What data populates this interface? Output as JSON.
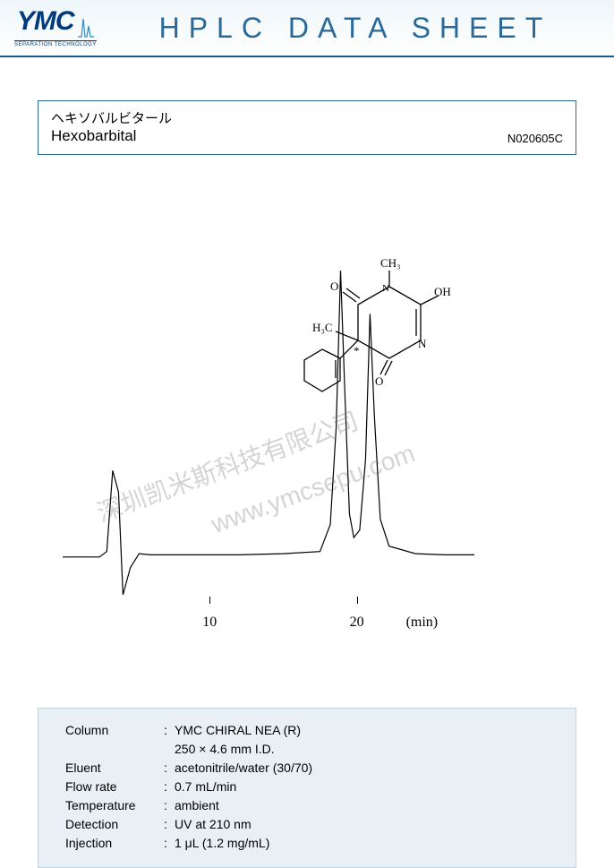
{
  "header": {
    "logo_main": "YMC",
    "logo_sub": "SEPARATION TECHNOLOGY",
    "sheet_title": "HPLC DATA SHEET",
    "title_color": "#2a6a9a",
    "logo_color": "#003a7a"
  },
  "compound": {
    "name_jp": "ヘキソバルビタール",
    "name_en": "Hexobarbital",
    "code": "N020605C"
  },
  "chromatogram": {
    "type": "line",
    "xlim": [
      0,
      28
    ],
    "ylim": [
      -40,
      300
    ],
    "x_ticks": [
      10,
      20
    ],
    "x_tick_labels": [
      "10",
      "20"
    ],
    "x_axis_unit": "(min)",
    "line_color": "#000000",
    "line_width": 1.2,
    "baseline_y": 0,
    "tick_label_fontsize": 16,
    "points": [
      [
        0,
        0
      ],
      [
        2.5,
        0
      ],
      [
        3.0,
        5
      ],
      [
        3.4,
        80
      ],
      [
        3.8,
        60
      ],
      [
        4.1,
        -35
      ],
      [
        4.6,
        -10
      ],
      [
        5.2,
        3
      ],
      [
        6,
        2
      ],
      [
        8,
        2
      ],
      [
        12,
        2
      ],
      [
        15,
        3
      ],
      [
        17.5,
        5
      ],
      [
        18.2,
        30
      ],
      [
        18.6,
        120
      ],
      [
        18.9,
        265
      ],
      [
        19.2,
        150
      ],
      [
        19.5,
        40
      ],
      [
        19.8,
        18
      ],
      [
        20.2,
        25
      ],
      [
        20.6,
        90
      ],
      [
        20.9,
        225
      ],
      [
        21.2,
        130
      ],
      [
        21.6,
        35
      ],
      [
        22.2,
        10
      ],
      [
        24,
        3
      ],
      [
        26,
        2
      ],
      [
        28,
        2
      ]
    ]
  },
  "molecule": {
    "labels": {
      "ch3_top": "CH₃",
      "h3c_left": "H₃C",
      "oh": "OH",
      "o1": "O",
      "o2": "O",
      "n1": "N",
      "n2": "N",
      "star": "*"
    },
    "color": "#000000",
    "fontsize": 13
  },
  "watermarks": {
    "text_cn": "深圳凯米斯科技有限公司",
    "text_url": "www.ymcsepu.com",
    "color": "rgba(100,100,100,0.28)",
    "rotation_deg": -20,
    "fontsize": 28
  },
  "parameters": {
    "rows": [
      {
        "label": "Column",
        "value": "YMC CHIRAL NEA (R)",
        "value2": " 250 × 4.6 mm I.D."
      },
      {
        "label": "Eluent",
        "value": "acetonitrile/water (30/70)"
      },
      {
        "label": "Flow rate",
        "value": "0.7 mL/min"
      },
      {
        "label": "Temperature",
        "value": "ambient"
      },
      {
        "label": "Detection",
        "value": "UV at 210 nm"
      },
      {
        "label": "Injection",
        "value": "1 μL (1.2 mg/mL)"
      }
    ],
    "bg_color": "#e8f0f5",
    "fontsize": 14
  }
}
